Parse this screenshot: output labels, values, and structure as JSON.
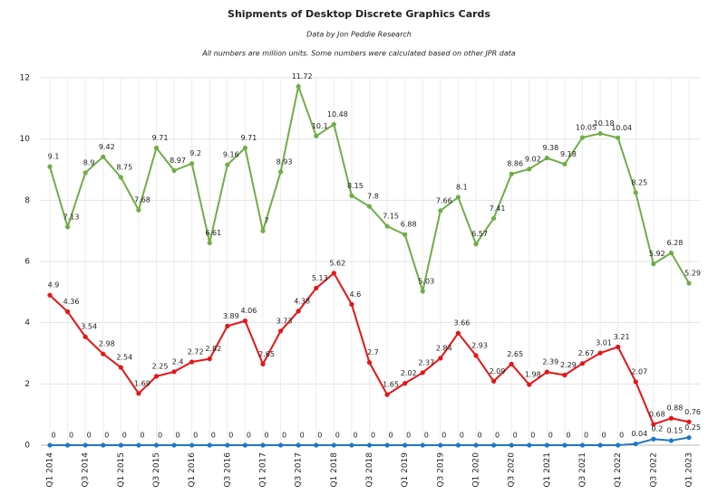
{
  "chart_data": {
    "type": "line",
    "title": "Shipments of Desktop Discrete Graphics Cards",
    "subtitle": "Data by Jon Peddie Research",
    "note": "All numbers are million units. Some numbers were calculated based on other JPR data",
    "categories": [
      "Q1 2014",
      null,
      "Q3 2014",
      null,
      "Q1 2015",
      null,
      "Q3 2015",
      null,
      "Q1 2016",
      null,
      "Q3 2016",
      null,
      "Q1 2017",
      null,
      "Q3 2017",
      null,
      "Q1 2018",
      null,
      "Q3 2018",
      null,
      "Q1 2019",
      null,
      "Q3 2019",
      null,
      "Q1 2020",
      null,
      "Q3 2020",
      null,
      "Q1 2021",
      null,
      "Q3 2021",
      null,
      "Q1 2022",
      null,
      "Q3 2022",
      null,
      "Q1 2023"
    ],
    "series": [
      {
        "color": "#70ad47",
        "values": [
          9.1,
          7.13,
          8.9,
          9.42,
          8.75,
          7.68,
          9.71,
          8.97,
          9.2,
          6.61,
          9.16,
          9.71,
          7,
          8.93,
          11.72,
          10.1,
          10.48,
          8.15,
          7.8,
          7.15,
          6.88,
          5.03,
          7.66,
          8.1,
          6.57,
          7.41,
          8.86,
          9.02,
          9.38,
          9.18,
          10.05,
          10.18,
          10.04,
          8.25,
          5.92,
          6.28,
          5.29
        ]
      },
      {
        "color": "#e81416",
        "values": [
          4.9,
          4.36,
          3.54,
          2.98,
          2.54,
          1.69,
          2.25,
          2.4,
          2.72,
          2.82,
          3.89,
          4.06,
          2.65,
          3.73,
          4.38,
          5.13,
          5.62,
          4.6,
          2.7,
          1.65,
          2.02,
          2.37,
          2.84,
          3.66,
          2.93,
          2.09,
          2.65,
          1.98,
          2.39,
          2.29,
          2.67,
          3.01,
          3.21,
          2.07,
          0.68,
          0.88,
          0.76
        ]
      },
      {
        "color": "#1f77c4",
        "values": [
          0,
          0,
          0,
          0,
          0,
          0,
          0,
          0,
          0,
          0,
          0,
          0,
          0,
          0,
          0,
          0,
          0,
          0,
          0,
          0,
          0,
          0,
          0,
          0,
          0,
          0,
          0,
          0,
          0,
          0,
          0,
          0,
          0,
          0.04,
          0.2,
          0.15,
          0.25
        ]
      }
    ],
    "ylim": [
      0,
      12
    ],
    "yticks": [
      0,
      2,
      4,
      6,
      8,
      10,
      12
    ],
    "grid": true
  }
}
